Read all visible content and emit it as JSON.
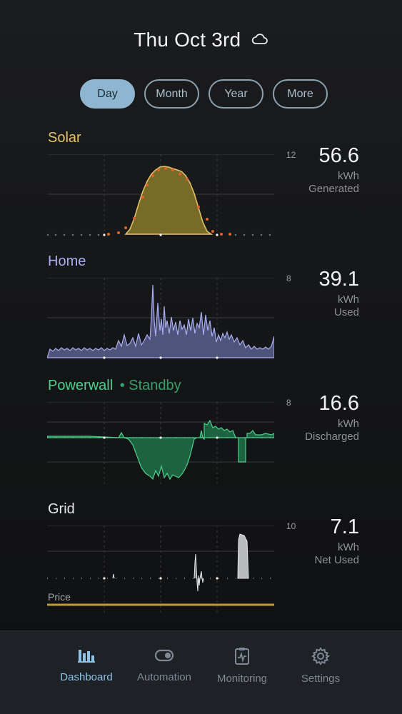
{
  "header": {
    "date": "Thu Oct 3rd",
    "weather_icon": "cloud-icon"
  },
  "tabs": [
    {
      "label": "Day",
      "active": true
    },
    {
      "label": "Month",
      "active": false
    },
    {
      "label": "Year",
      "active": false
    },
    {
      "label": "More",
      "active": false
    }
  ],
  "solar": {
    "title": "Solar",
    "scale": "12",
    "value": "56.6",
    "unit": "kWh",
    "caption": "Generated",
    "color": "#e6c46a"
  },
  "home": {
    "title": "Home",
    "scale": "8",
    "value": "39.1",
    "unit": "kWh",
    "caption": "Used",
    "color": "#a9aef2"
  },
  "powerwall": {
    "title": "Powerwall",
    "status": "• Standby",
    "scale": "8",
    "value": "16.6",
    "unit": "kWh",
    "caption": "Discharged",
    "color": "#4fcf8c"
  },
  "grid": {
    "title": "Grid",
    "scale": "10",
    "value": "7.1",
    "unit": "kWh",
    "caption": "Net Used",
    "price_label": "Price",
    "color": "#e6e7ea"
  },
  "nav": [
    {
      "label": "Dashboard",
      "icon": "bar-chart-icon",
      "active": true
    },
    {
      "label": "Automation",
      "icon": "toggle-icon",
      "active": false
    },
    {
      "label": "Monitoring",
      "icon": "monitoring-icon",
      "active": false
    },
    {
      "label": "Settings",
      "icon": "gear-icon",
      "active": false
    }
  ]
}
